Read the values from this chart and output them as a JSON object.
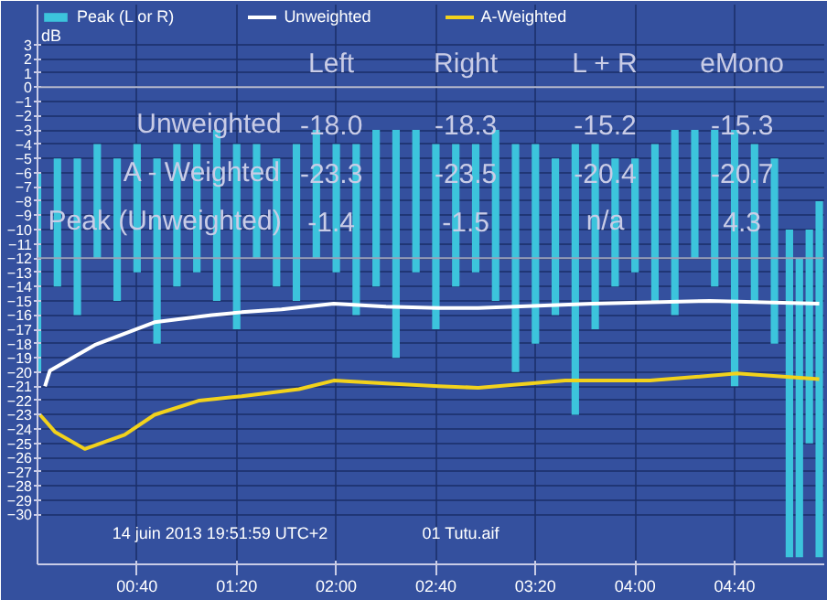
{
  "chart_data": {
    "type": "line",
    "ylabel": "dB",
    "xlim": [
      0,
      316
    ],
    "ylim": [
      -33.5,
      5.8
    ],
    "xticks": [
      {
        "value": 40,
        "label": "00:40"
      },
      {
        "value": 80,
        "label": "01:20"
      },
      {
        "value": 120,
        "label": "02:00"
      },
      {
        "value": 160,
        "label": "02:40"
      },
      {
        "value": 200,
        "label": "03:20"
      },
      {
        "value": 240,
        "label": "04:00"
      },
      {
        "value": 280,
        "label": "04:40"
      }
    ],
    "yticks": [
      3,
      2,
      1,
      0,
      -1,
      -2,
      -3,
      -4,
      -5,
      -6,
      -7,
      -8,
      -9,
      -10,
      -11,
      -12,
      -13,
      -14,
      -15,
      -16,
      -17,
      -18,
      -19,
      -20,
      -21,
      -22,
      -23,
      -24,
      -25,
      -26,
      -27,
      -28,
      -29,
      -30
    ],
    "grid": true,
    "legend": "top left",
    "ref_lines": [
      {
        "axis": "y",
        "value": 0,
        "color": "#b8bcd0"
      },
      {
        "axis": "y",
        "value": -12,
        "color": "#9aa0b8"
      }
    ],
    "series": [
      {
        "name": "Peak (L or R)",
        "type": "bar",
        "color": "#3cc4dc",
        "x": [
          0,
          8,
          16,
          24,
          32,
          40,
          48,
          56,
          64,
          72,
          80,
          88,
          96,
          104,
          112,
          120,
          128,
          136,
          144,
          152,
          160,
          168,
          176,
          184,
          192,
          200,
          208,
          216,
          224,
          232,
          240,
          248,
          256,
          264,
          272,
          280,
          288,
          296,
          302,
          306,
          310,
          314
        ],
        "base": [
          -20,
          -14,
          -16,
          -12,
          -15,
          -13,
          -18,
          -14,
          -13,
          -15,
          -17,
          -12,
          -14,
          -15,
          -12,
          -13,
          -16,
          -14,
          -19,
          -13,
          -17,
          -14,
          -13,
          -15,
          -20,
          -18,
          -16,
          -23,
          -17,
          -14,
          -13,
          -15,
          -16,
          -12,
          -14,
          -21,
          -15,
          -18,
          -33,
          -33,
          -25,
          -33
        ],
        "values": [
          14,
          9,
          11,
          8,
          10,
          9,
          13,
          10,
          9,
          12,
          13,
          8,
          9,
          11,
          9,
          9,
          12,
          11,
          16,
          10,
          13,
          10,
          9,
          12,
          16,
          14,
          11,
          19,
          13,
          9,
          8,
          11,
          13,
          9,
          11,
          18,
          11,
          13,
          23,
          21,
          15,
          25
        ]
      },
      {
        "name": "Unweighted",
        "color": "#ffffff",
        "x": [
          3,
          5,
          14,
          23,
          47,
          70,
          82,
          98,
          119,
          140,
          161,
          177,
          223,
          270,
          314
        ],
        "values": [
          -21,
          -19.9,
          -19.0,
          -18.1,
          -16.5,
          -16.0,
          -15.8,
          -15.6,
          -15.2,
          -15.4,
          -15.5,
          -15.5,
          -15.2,
          -15.0,
          -15.2
        ]
      },
      {
        "name": "A-Weighted",
        "color": "#f2d21c",
        "x": [
          1,
          3.5,
          7,
          19,
          35,
          47,
          65,
          82,
          105,
          119,
          140,
          161,
          177,
          212,
          246,
          281,
          314
        ],
        "values": [
          -23.0,
          -23.5,
          -24.2,
          -25.4,
          -24.4,
          -23.0,
          -22.0,
          -21.7,
          -21.2,
          -20.6,
          -20.8,
          -21.0,
          -21.1,
          -20.6,
          -20.6,
          -20.1,
          -20.5
        ]
      }
    ],
    "annotations": [
      "Left",
      "Right",
      "L + R",
      "eMono",
      "Unweighted",
      "-18.0",
      "-18.3",
      "-15.2",
      "-15.3",
      "A - Weighted",
      "-23.3",
      "-23.5",
      "-20.4",
      "-20.7",
      "Peak (Unweighted)",
      "-1.4",
      "-1.5",
      "n/a",
      "4.3",
      "14 juin 2013 19:51:59 UTC+2",
      "01 Tutu.aif"
    ]
  }
}
